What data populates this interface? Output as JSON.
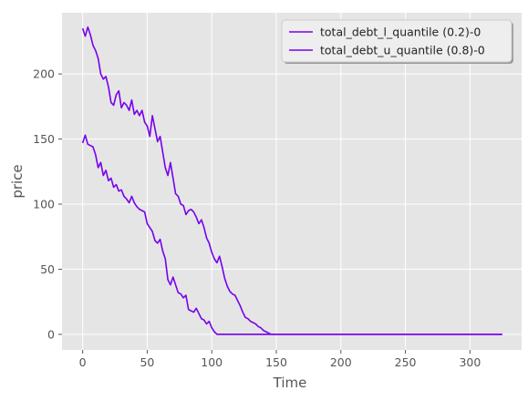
{
  "chart_data": {
    "type": "line",
    "xlabel": "Time",
    "ylabel": "price",
    "xlim": [
      -16,
      340
    ],
    "ylim": [
      -12,
      247
    ],
    "xticks": [
      0,
      50,
      100,
      150,
      200,
      250,
      300
    ],
    "yticks": [
      0,
      50,
      100,
      150,
      200
    ],
    "grid": true,
    "legend_position": "top-right",
    "series": [
      {
        "name": "total_debt_l_quantile (0.2)-0",
        "color": "#7700ee",
        "points": [
          [
            0,
            147
          ],
          [
            2,
            153
          ],
          [
            4,
            146
          ],
          [
            6,
            145
          ],
          [
            8,
            144
          ],
          [
            10,
            138
          ],
          [
            12,
            128
          ],
          [
            14,
            132
          ],
          [
            16,
            122
          ],
          [
            18,
            126
          ],
          [
            20,
            118
          ],
          [
            22,
            120
          ],
          [
            24,
            113
          ],
          [
            26,
            115
          ],
          [
            28,
            110
          ],
          [
            30,
            111
          ],
          [
            32,
            106
          ],
          [
            34,
            104
          ],
          [
            36,
            101
          ],
          [
            38,
            106
          ],
          [
            40,
            101
          ],
          [
            42,
            98
          ],
          [
            44,
            96
          ],
          [
            46,
            95
          ],
          [
            48,
            94
          ],
          [
            50,
            85
          ],
          [
            52,
            82
          ],
          [
            54,
            79
          ],
          [
            56,
            72
          ],
          [
            58,
            70
          ],
          [
            60,
            73
          ],
          [
            62,
            64
          ],
          [
            64,
            58
          ],
          [
            66,
            42
          ],
          [
            68,
            38
          ],
          [
            70,
            44
          ],
          [
            72,
            38
          ],
          [
            74,
            32
          ],
          [
            76,
            31
          ],
          [
            78,
            28
          ],
          [
            80,
            30
          ],
          [
            82,
            19
          ],
          [
            84,
            18
          ],
          [
            86,
            17
          ],
          [
            88,
            20
          ],
          [
            90,
            16
          ],
          [
            92,
            12
          ],
          [
            94,
            11
          ],
          [
            96,
            8
          ],
          [
            98,
            10
          ],
          [
            100,
            5
          ],
          [
            102,
            2
          ],
          [
            104,
            0
          ],
          [
            110,
            0
          ],
          [
            150,
            0
          ],
          [
            200,
            0
          ],
          [
            250,
            0
          ],
          [
            300,
            0
          ],
          [
            325,
            0
          ]
        ]
      },
      {
        "name": "total_debt_u_quantile (0.8)-0",
        "color": "#7700ee",
        "points": [
          [
            0,
            235
          ],
          [
            2,
            229
          ],
          [
            4,
            236
          ],
          [
            6,
            230
          ],
          [
            8,
            222
          ],
          [
            10,
            218
          ],
          [
            12,
            212
          ],
          [
            14,
            200
          ],
          [
            16,
            196
          ],
          [
            18,
            198
          ],
          [
            20,
            190
          ],
          [
            22,
            178
          ],
          [
            24,
            176
          ],
          [
            26,
            184
          ],
          [
            28,
            187
          ],
          [
            30,
            174
          ],
          [
            32,
            178
          ],
          [
            34,
            176
          ],
          [
            36,
            172
          ],
          [
            38,
            180
          ],
          [
            40,
            169
          ],
          [
            42,
            172
          ],
          [
            44,
            168
          ],
          [
            46,
            172
          ],
          [
            48,
            163
          ],
          [
            50,
            160
          ],
          [
            52,
            152
          ],
          [
            54,
            168
          ],
          [
            56,
            158
          ],
          [
            58,
            148
          ],
          [
            60,
            152
          ],
          [
            62,
            140
          ],
          [
            64,
            128
          ],
          [
            66,
            122
          ],
          [
            68,
            132
          ],
          [
            70,
            120
          ],
          [
            72,
            108
          ],
          [
            74,
            106
          ],
          [
            76,
            100
          ],
          [
            78,
            99
          ],
          [
            80,
            92
          ],
          [
            82,
            95
          ],
          [
            84,
            96
          ],
          [
            86,
            94
          ],
          [
            88,
            90
          ],
          [
            90,
            85
          ],
          [
            92,
            88
          ],
          [
            94,
            82
          ],
          [
            96,
            74
          ],
          [
            98,
            70
          ],
          [
            100,
            63
          ],
          [
            102,
            58
          ],
          [
            104,
            55
          ],
          [
            106,
            60
          ],
          [
            108,
            52
          ],
          [
            110,
            43
          ],
          [
            112,
            37
          ],
          [
            114,
            33
          ],
          [
            116,
            31
          ],
          [
            118,
            30
          ],
          [
            120,
            26
          ],
          [
            122,
            22
          ],
          [
            124,
            17
          ],
          [
            126,
            13
          ],
          [
            128,
            12
          ],
          [
            130,
            10
          ],
          [
            132,
            9
          ],
          [
            134,
            8
          ],
          [
            136,
            6
          ],
          [
            138,
            5
          ],
          [
            140,
            3
          ],
          [
            142,
            2
          ],
          [
            144,
            1
          ],
          [
            146,
            0
          ],
          [
            150,
            0
          ],
          [
            200,
            0
          ],
          [
            250,
            0
          ],
          [
            300,
            0
          ],
          [
            325,
            0
          ]
        ]
      }
    ]
  }
}
